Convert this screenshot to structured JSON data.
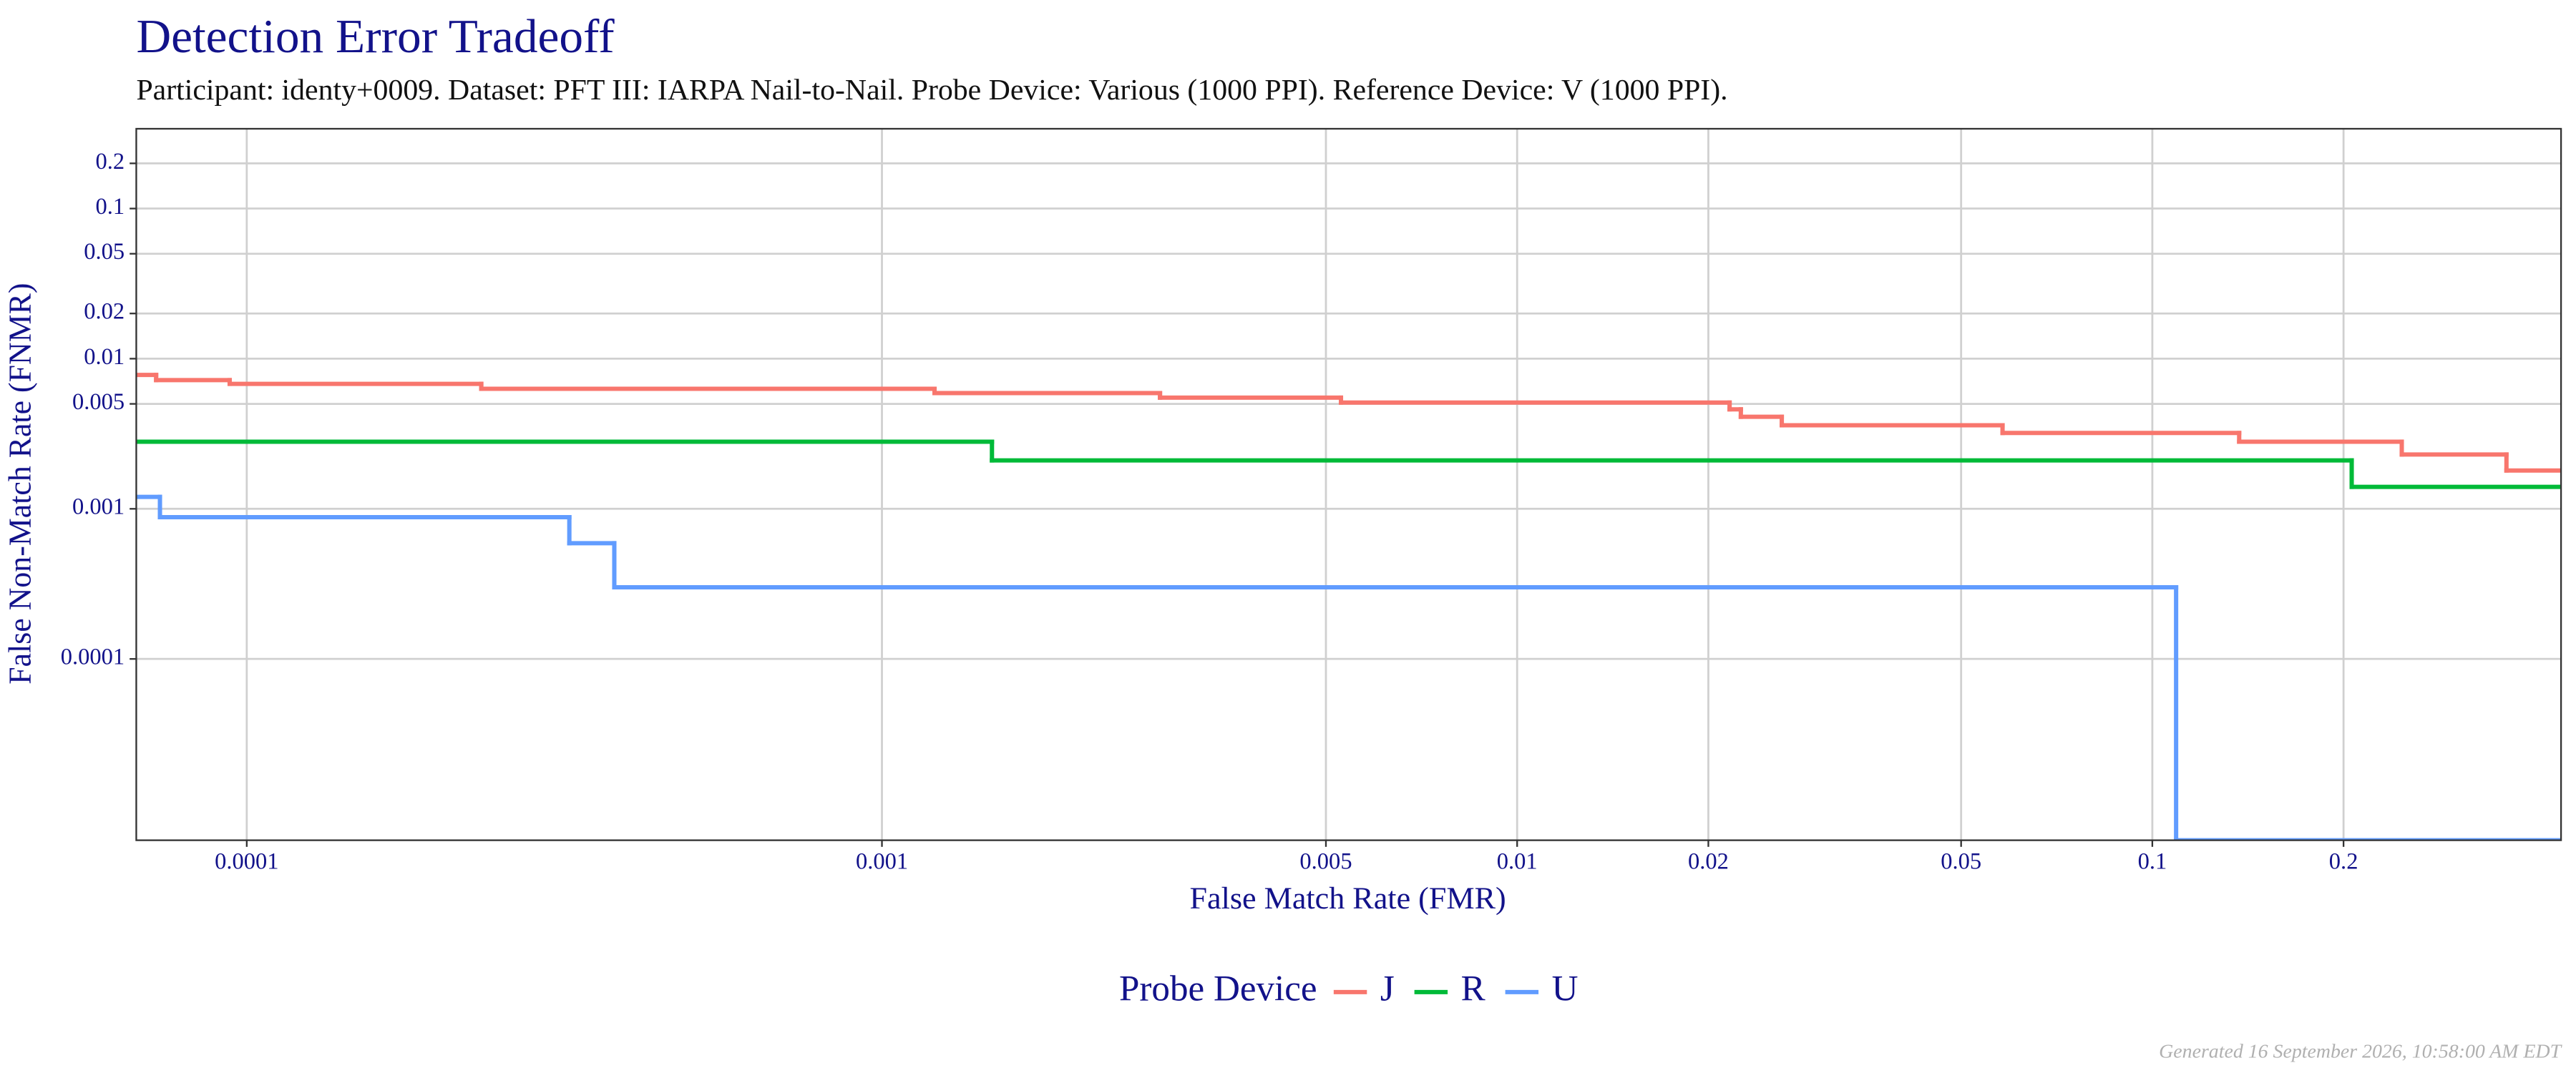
{
  "chart_data": {
    "type": "step",
    "title": "Detection Error Tradeoff",
    "subtitle": "Participant: identy+0009. Dataset: PFT III: IARPA Nail-to-Nail. Probe Device: Various (1000 PPI). Reference Device: V (1000 PPI).",
    "x_label": "False Match Rate (FMR)",
    "y_label": "False Non-Match Rate (FNMR)",
    "log_x": true,
    "log_y": true,
    "grid": true,
    "xlim": [
      6.7e-05,
      0.44
    ],
    "ylim": [
      6.2e-06,
      0.34
    ],
    "xticks": [
      0.0001,
      0.001,
      0.005,
      0.01,
      0.02,
      0.05,
      0.1,
      0.2
    ],
    "yticks": [
      0.0001,
      0.001,
      0.005,
      0.01,
      0.02,
      0.05,
      0.1,
      0.2
    ],
    "legend_title": "Probe Device",
    "legend_position": "bottom",
    "series": [
      {
        "name": "J",
        "color": "#F8766D",
        "x": [
          6.7e-05,
          7.2e-05,
          9.4e-05,
          0.000234,
          0.00121,
          0.00274,
          0.00528,
          0.0216,
          0.0225,
          0.0261,
          0.0581,
          0.137,
          0.247,
          0.361
        ],
        "values": [
          0.0078,
          0.0072,
          0.0068,
          0.0063,
          0.0059,
          0.0055,
          0.0051,
          0.0046,
          0.0041,
          0.0036,
          0.0032,
          0.0028,
          0.0023,
          0.0018
        ]
      },
      {
        "name": "R",
        "color": "#00BA38",
        "x": [
          6.7e-05,
          0.00149,
          0.206
        ],
        "values": [
          0.0028,
          0.0021,
          0.0014
        ]
      },
      {
        "name": "U",
        "color": "#619CFF",
        "x": [
          6.7e-05,
          7.3e-05,
          0.000322,
          0.000379,
          0.109
        ],
        "values": [
          0.0012,
          0.00088,
          0.00059,
          0.0003,
          0
        ]
      }
    ],
    "footer": "Generated 16 September 2026, 10:58:00 AM EDT"
  }
}
